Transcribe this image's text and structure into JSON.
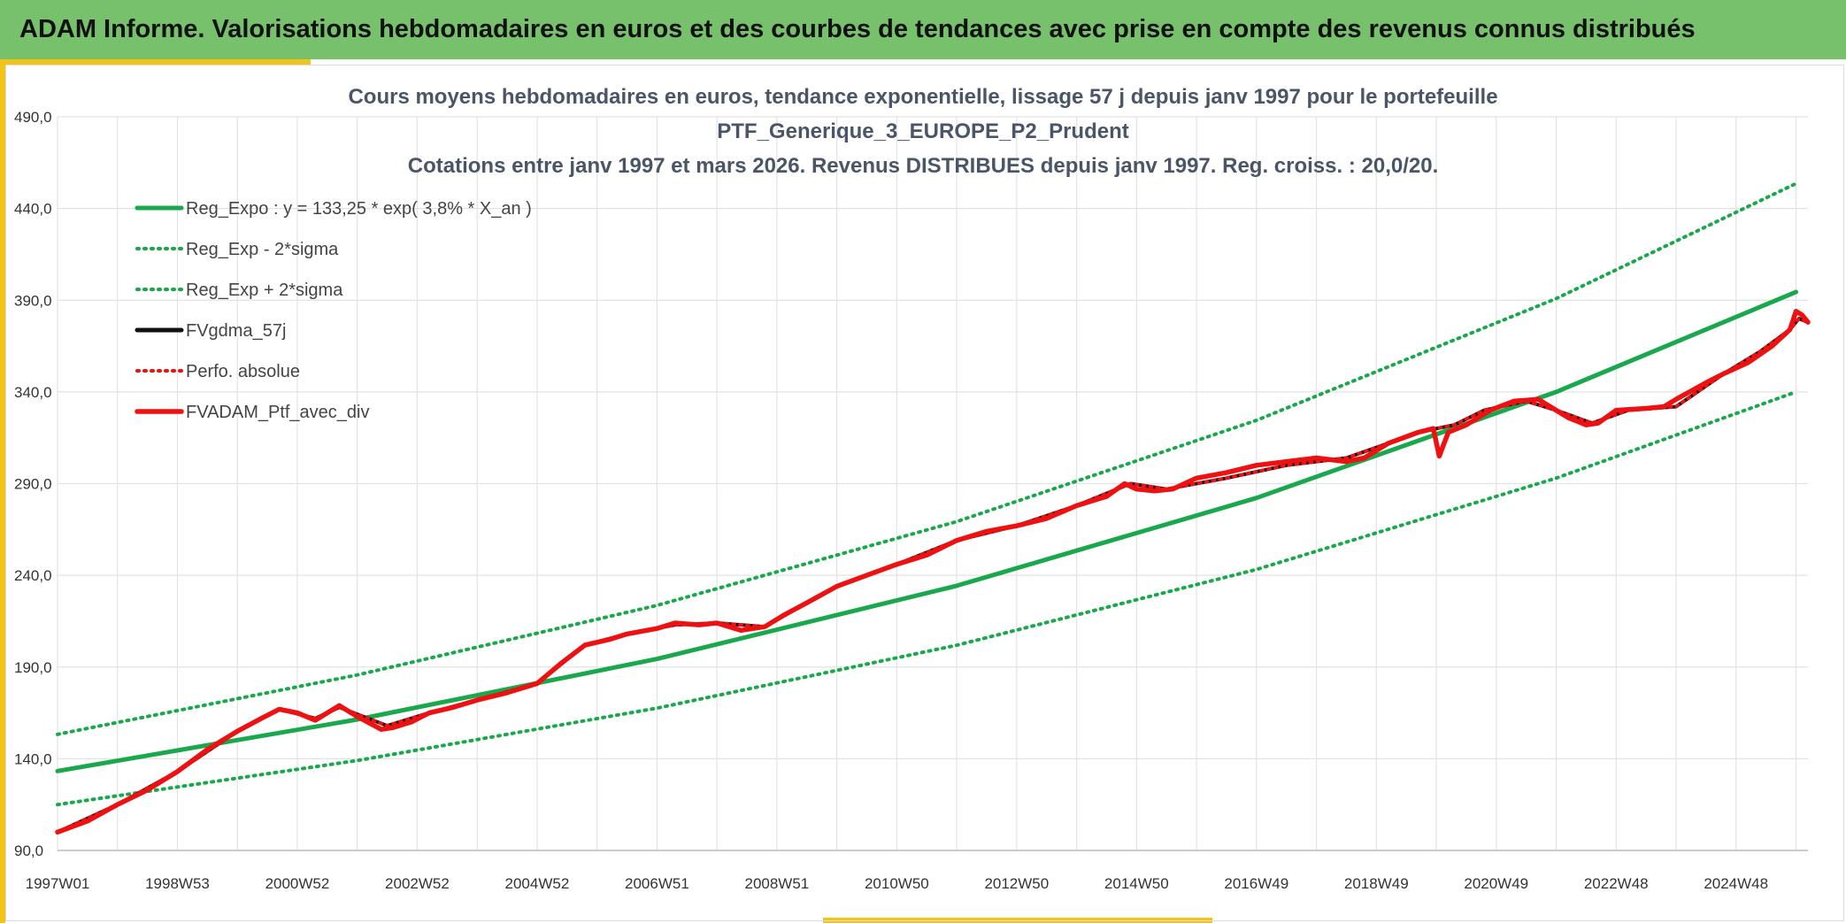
{
  "header": {
    "title": "ADAM Informe. Valorisations hebdomadaires en euros et des courbes de tendances avec prise en compte des revenus connus distribués"
  },
  "colors": {
    "banner": "#77c16c",
    "accent": "#f2c318",
    "trend": "#1aa84c",
    "gdma": "#111111",
    "perf": "#ee1111",
    "fvadam": "#ee1111",
    "grid": "#e3e3e3"
  },
  "chart_data": {
    "type": "line",
    "title_lines": [
      "Cours moyens hebdomadaires en euros, tendance exponentielle, lissage 57 j depuis janv 1997 pour le portefeuille",
      "PTF_Generique_3_EUROPE_P2_Prudent",
      "Cotations entre janv 1997 et mars 2026. Revenus DISTRIBUES depuis janv 1997. Reg. croiss. : 20,0/20."
    ],
    "xlabel": "",
    "ylabel": "",
    "xlim": [
      1997.0,
      2026.2
    ],
    "ylim": [
      90,
      490
    ],
    "y_ticks": [
      90,
      140,
      190,
      240,
      290,
      340,
      390,
      440,
      490
    ],
    "y_tick_labels": [
      "90,0",
      "140,0",
      "190,0",
      "240,0",
      "290,0",
      "340,0",
      "390,0",
      "440,0",
      "490,0"
    ],
    "x_ticks": [
      1997.0,
      1999.0,
      2001.0,
      2003.0,
      2005.0,
      2007.0,
      2009.0,
      2011.0,
      2013.0,
      2015.0,
      2017.0,
      2019.0,
      2021.0,
      2023.0,
      2025.0
    ],
    "x_tick_labels": [
      "1997W01",
      "1998W53",
      "2000W52",
      "2002W52",
      "2004W52",
      "2006W51",
      "2008W51",
      "2010W50",
      "2012W50",
      "2014W50",
      "2016W49",
      "2018W49",
      "2020W49",
      "2022W48",
      "2024W48"
    ],
    "grid": true,
    "legend_position": "top-left",
    "series": [
      {
        "name": "Reg_Expo : y = 133,25 * exp( 3,8% *  X_an )",
        "style": "solid",
        "color": "#1aa84c",
        "x": [
          1997.0,
          2002.0,
          2007.0,
          2012.0,
          2017.0,
          2022.0,
          2026.0
        ],
        "y": [
          133.3,
          161.4,
          194.4,
          234.3,
          282.2,
          340.0,
          394.5
        ]
      },
      {
        "name": "Reg_Exp - 2*sigma",
        "style": "dotted",
        "color": "#1aa84c",
        "x": [
          1997.0,
          2002.0,
          2007.0,
          2012.0,
          2017.0,
          2022.0,
          2026.0
        ],
        "y": [
          115.0,
          139.0,
          167.6,
          201.9,
          243.2,
          293.0,
          340.0
        ]
      },
      {
        "name": "Reg_Exp + 2*sigma",
        "style": "dotted",
        "color": "#1aa84c",
        "x": [
          1997.0,
          2002.0,
          2007.0,
          2012.0,
          2017.0,
          2022.0,
          2026.0
        ],
        "y": [
          153.3,
          185.7,
          223.6,
          269.3,
          324.5,
          390.9,
          453.6
        ]
      },
      {
        "name": "FVgdma_57j",
        "style": "solid",
        "color": "#111111",
        "x": [
          1997.0,
          1998.0,
          1999.0,
          2000.0,
          2000.7,
          2001.3,
          2001.7,
          2002.5,
          2003.2,
          2004.0,
          2005.0,
          2005.8,
          2006.5,
          2007.3,
          2008.0,
          2008.8,
          2009.5,
          2010.0,
          2011.0,
          2012.0,
          2013.0,
          2014.0,
          2014.9,
          2015.5,
          2016.5,
          2017.5,
          2018.5,
          2019.2,
          2019.7,
          2020.3,
          2020.8,
          2021.5,
          2022.0,
          2022.6,
          2023.2,
          2024.0,
          2024.8,
          2025.4,
          2025.9,
          2026.05,
          2026.2
        ],
        "y": [
          100,
          115,
          133,
          155,
          167,
          162,
          168,
          158,
          165,
          172,
          181,
          202,
          208,
          213,
          214,
          212,
          225,
          234,
          246,
          259,
          267,
          278,
          290,
          287,
          293,
          300,
          304,
          312,
          318,
          322,
          330,
          335,
          330,
          323,
          330,
          332,
          350,
          362,
          374,
          380,
          378
        ]
      },
      {
        "name": "Perfo. absolue",
        "style": "dotted",
        "color": "#ee1111",
        "x": [
          1997.0,
          1998.0,
          1999.0,
          2000.0,
          2000.7,
          2001.3,
          2001.7,
          2002.5,
          2003.2,
          2004.0,
          2005.0,
          2005.8,
          2006.5,
          2007.3,
          2008.0,
          2008.8,
          2009.5,
          2010.0,
          2011.0,
          2012.0,
          2013.0,
          2014.0,
          2014.9,
          2015.5,
          2016.5,
          2017.5,
          2018.5,
          2019.2,
          2019.7,
          2020.3,
          2020.8,
          2021.5,
          2022.0,
          2022.6,
          2023.2,
          2024.0,
          2024.8,
          2025.4,
          2025.9,
          2026.05,
          2026.2
        ],
        "y": [
          100,
          115,
          133,
          155,
          167,
          162,
          168,
          158,
          165,
          172,
          181,
          202,
          208,
          213,
          214,
          212,
          225,
          234,
          246,
          259,
          267,
          278,
          290,
          287,
          293,
          300,
          304,
          312,
          318,
          322,
          330,
          335,
          330,
          323,
          330,
          332,
          350,
          362,
          374,
          380,
          378
        ]
      },
      {
        "name": "FVADAM_Ptf_avec_div",
        "style": "solid-thick",
        "color": "#ee1111",
        "x": [
          1997.0,
          1997.5,
          1998.0,
          1998.5,
          1999.0,
          1999.5,
          2000.0,
          2000.4,
          2000.7,
          2001.0,
          2001.3,
          2001.7,
          2002.0,
          2002.4,
          2002.6,
          2002.9,
          2003.2,
          2003.6,
          2004.0,
          2004.5,
          2005.0,
          2005.4,
          2005.8,
          2006.2,
          2006.5,
          2007.0,
          2007.3,
          2007.7,
          2008.0,
          2008.4,
          2008.8,
          2009.1,
          2009.5,
          2010.0,
          2010.5,
          2011.0,
          2011.5,
          2012.0,
          2012.5,
          2013.0,
          2013.5,
          2014.0,
          2014.5,
          2014.8,
          2015.0,
          2015.3,
          2015.6,
          2016.0,
          2016.5,
          2017.0,
          2017.5,
          2018.0,
          2018.5,
          2018.8,
          2019.2,
          2019.7,
          2019.95,
          2020.05,
          2020.2,
          2020.5,
          2020.9,
          2021.3,
          2021.7,
          2022.0,
          2022.2,
          2022.5,
          2022.7,
          2023.0,
          2023.5,
          2023.8,
          2024.0,
          2024.5,
          2024.8,
          2025.2,
          2025.6,
          2025.9,
          2026.0,
          2026.1,
          2026.2
        ],
        "y": [
          100,
          106,
          115,
          123,
          133,
          145,
          155,
          162,
          167,
          165,
          161,
          169,
          163,
          156,
          157,
          160,
          165,
          168,
          172,
          176,
          181,
          192,
          202,
          205,
          208,
          211,
          214,
          213,
          214,
          210,
          212,
          218,
          225,
          234,
          240,
          246,
          251,
          259,
          264,
          267,
          271,
          278,
          283,
          290,
          287,
          286,
          287,
          293,
          296,
          300,
          302,
          304,
          302,
          304,
          312,
          318,
          320,
          305,
          318,
          322,
          330,
          335,
          336,
          330,
          326,
          322,
          323,
          330,
          331,
          332,
          336,
          345,
          350,
          356,
          365,
          374,
          384,
          382,
          378
        ]
      }
    ]
  }
}
